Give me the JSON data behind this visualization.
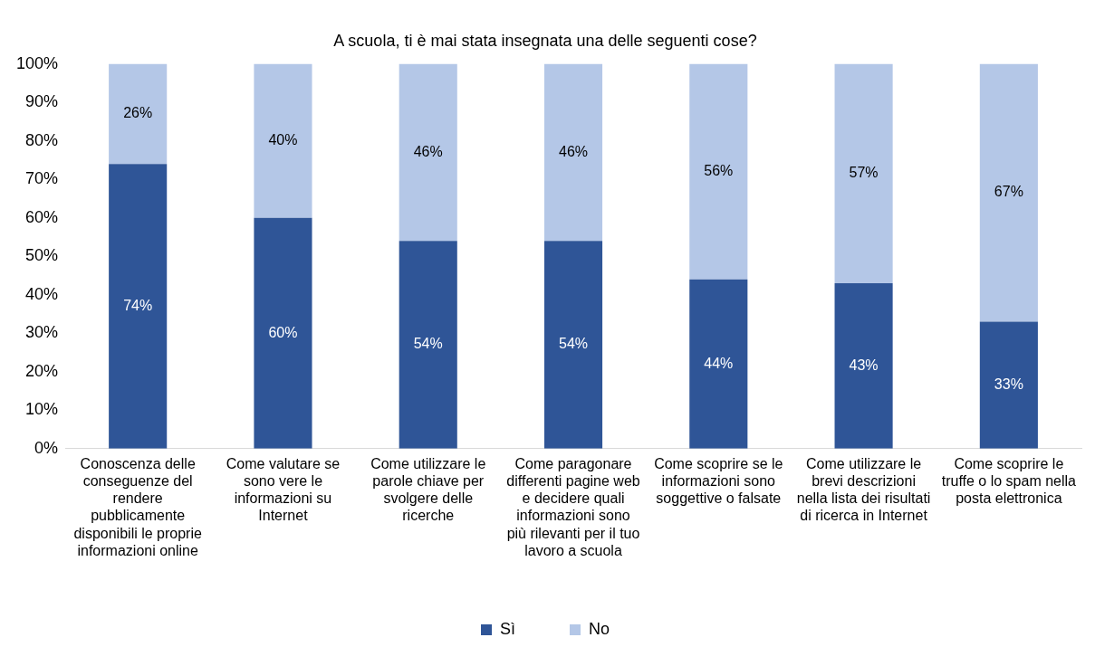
{
  "chart_data": {
    "type": "bar",
    "stacked": true,
    "title": "A scuola, ti è mai stata insegnata una delle seguenti cose?",
    "categories": [
      "Conoscenza delle conseguenze del rendere pubblicamente disponibili le proprie informazioni online",
      "Come valutare se sono vere le informazioni su Internet",
      "Come utilizzare le parole chiave per svolgere delle ricerche",
      "Come paragonare differenti pagine web e decidere quali informazioni sono più rilevanti per il tuo lavoro a scuola",
      "Come scoprire se le informazioni sono soggettive o falsate",
      "Come utilizzare le brevi descrizioni nella lista dei risultati di ricerca in Internet",
      "Come scoprire le truffe o lo spam nella posta elettronica"
    ],
    "series": [
      {
        "name": "Sì",
        "color": "#2f5597",
        "values": [
          74,
          60,
          54,
          54,
          44,
          43,
          33
        ],
        "value_labels": [
          "74%",
          "60%",
          "54%",
          "54%",
          "44%",
          "43%",
          "33%"
        ]
      },
      {
        "name": "No",
        "color": "#b4c7e7",
        "values": [
          26,
          40,
          46,
          46,
          56,
          57,
          67
        ],
        "value_labels": [
          "26%",
          "40%",
          "46%",
          "46%",
          "56%",
          "57%",
          "67%"
        ]
      }
    ],
    "ylim": [
      0,
      100
    ],
    "yticks": [
      {
        "value": 0,
        "label": "0%"
      },
      {
        "value": 10,
        "label": "10%"
      },
      {
        "value": 20,
        "label": "20%"
      },
      {
        "value": 30,
        "label": "30%"
      },
      {
        "value": 40,
        "label": "40%"
      },
      {
        "value": 50,
        "label": "50%"
      },
      {
        "value": 60,
        "label": "60%"
      },
      {
        "value": 70,
        "label": "70%"
      },
      {
        "value": 80,
        "label": "80%"
      },
      {
        "value": 90,
        "label": "90%"
      },
      {
        "value": 100,
        "label": "100%"
      }
    ],
    "grid": false,
    "legend": "bottom"
  }
}
